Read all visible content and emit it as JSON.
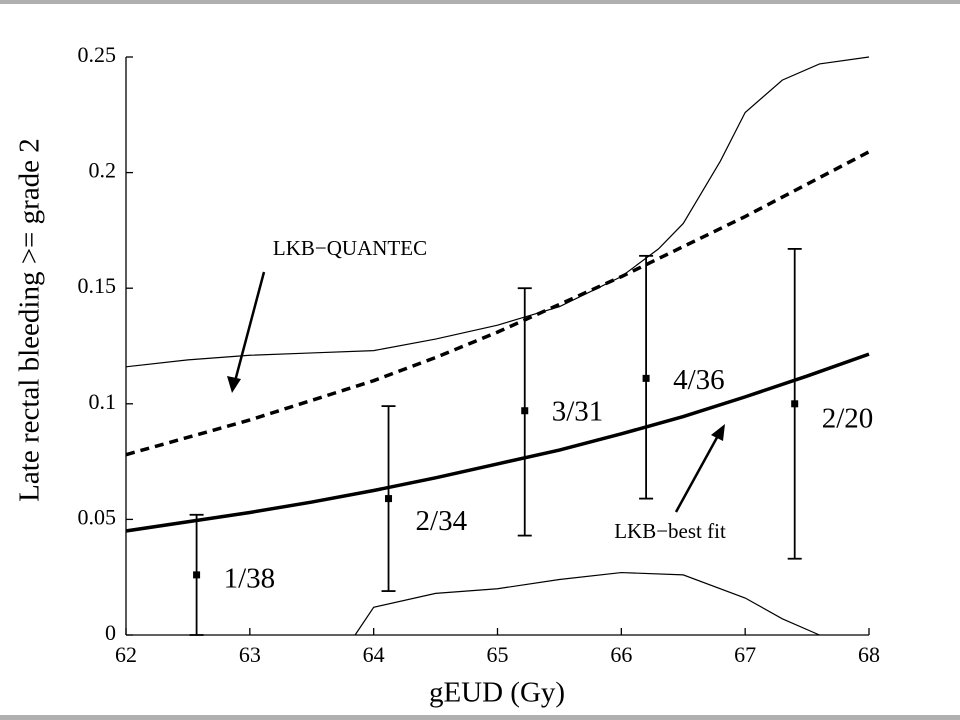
{
  "chart_data": {
    "type": "line",
    "xlabel": "gEUD (Gy)",
    "ylabel": "Late rectal bleeding >= grade 2",
    "xlim": [
      62,
      68
    ],
    "ylim": [
      0,
      0.25
    ],
    "xticks": [
      62,
      63,
      64,
      65,
      66,
      67,
      68
    ],
    "yticks": [
      0,
      0.05,
      0.1,
      0.15,
      0.2,
      0.25
    ],
    "lines": [
      {
        "x": [
          62,
          62.5,
          63,
          63.5,
          64,
          64.5,
          65,
          65.5,
          66,
          66.5,
          67,
          67.5,
          68
        ],
        "values": [
          0.078,
          0.0855,
          0.093,
          0.1015,
          0.11,
          0.12,
          0.131,
          0.143,
          0.155,
          0.168,
          0.181,
          0.195,
          0.209
        ],
        "color": "#000",
        "dashed": true,
        "width": 3.5
      },
      {
        "x": [
          62,
          62.5,
          63,
          63.5,
          64,
          64.5,
          65,
          65.5,
          66,
          66.5,
          67,
          67.5,
          68
        ],
        "values": [
          0.045,
          0.049,
          0.053,
          0.0575,
          0.0625,
          0.068,
          0.074,
          0.08,
          0.087,
          0.0945,
          0.103,
          0.112,
          0.1215
        ],
        "color": "#000",
        "dashed": false,
        "width": 3.5
      },
      {
        "x": [
          62,
          62.5,
          63,
          63.5,
          64,
          64.5,
          65,
          65.5,
          66,
          66.3,
          66.5,
          66.8,
          67,
          67.3,
          67.6,
          68
        ],
        "values": [
          0.116,
          0.119,
          0.121,
          0.122,
          0.123,
          0.128,
          0.134,
          0.142,
          0.155,
          0.167,
          0.178,
          0.205,
          0.226,
          0.24,
          0.247,
          0.25
        ],
        "color": "#000",
        "dashed": false,
        "width": 1.2
      },
      {
        "x": [
          63.85,
          64,
          64.5,
          65,
          65.5,
          66,
          66.5,
          67,
          67.3,
          67.6
        ],
        "values": [
          0,
          0.012,
          0.018,
          0.02,
          0.024,
          0.027,
          0.026,
          0.016,
          0.007,
          0
        ],
        "color": "#000",
        "dashed": false,
        "width": 1.2
      }
    ],
    "points": {
      "x": [
        62.57,
        64.12,
        65.22,
        66.2,
        67.4
      ],
      "values": [
        0.026,
        0.059,
        0.097,
        0.111,
        0.1
      ],
      "lower": [
        0,
        0.019,
        0.043,
        0.059,
        0.033
      ],
      "upper": [
        0.052,
        0.099,
        0.15,
        0.164,
        0.167
      ],
      "labels": [
        "1/38",
        "2/34",
        "3/31",
        "4/36",
        "2/20"
      ]
    },
    "annotations": [
      "LKB−QUANTEC",
      "LKB−best fit"
    ]
  }
}
